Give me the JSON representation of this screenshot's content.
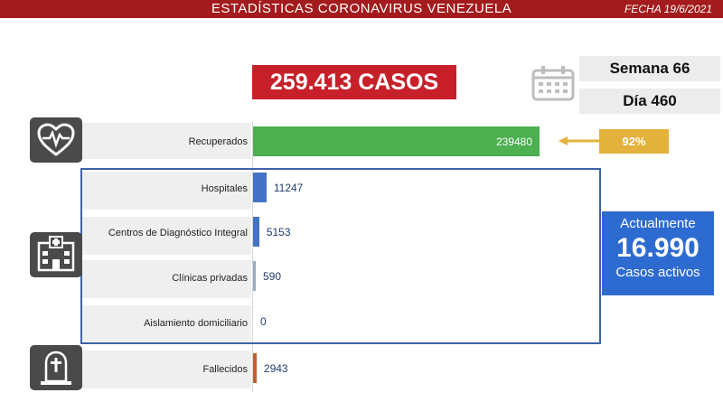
{
  "header": {
    "title": "ESTADÍSTICAS CORONAVIRUS VENEZUELA",
    "date": "FECHA 19/6/2021"
  },
  "total": {
    "label": "259.413 CASOS"
  },
  "calendar": {
    "week": "Semana 66",
    "day": "Día 460"
  },
  "recovered_percent": "92%",
  "active": {
    "line1": "Actualmente",
    "value": "16.990",
    "line2": "Casos activos"
  },
  "icons": {
    "recovered": "heart-monitor-icon",
    "hospital": "hospital-building-icon",
    "deaths": "gravestone-icon",
    "calendar": "calendar-icon"
  },
  "colors": {
    "header": "#a31b1c",
    "total": "#c8202a",
    "recovered": "#4caf50",
    "care": "#4472c4",
    "deaths": "#c0622f",
    "percent": "#e3b23c",
    "active": "#2e6bd1"
  },
  "chart_data": {
    "type": "bar",
    "orientation": "horizontal",
    "categories": [
      "Recuperados",
      "Hospitales",
      "Centros de Diagnóstico Integral",
      "Clínicas privadas",
      "Aislamiento domiciliario",
      "Fallecidos"
    ],
    "values": [
      239480,
      11247,
      5153,
      590,
      0,
      2943
    ],
    "value_labels": [
      "239480",
      "11247",
      "5153",
      "590",
      "0",
      "2943"
    ]
  }
}
